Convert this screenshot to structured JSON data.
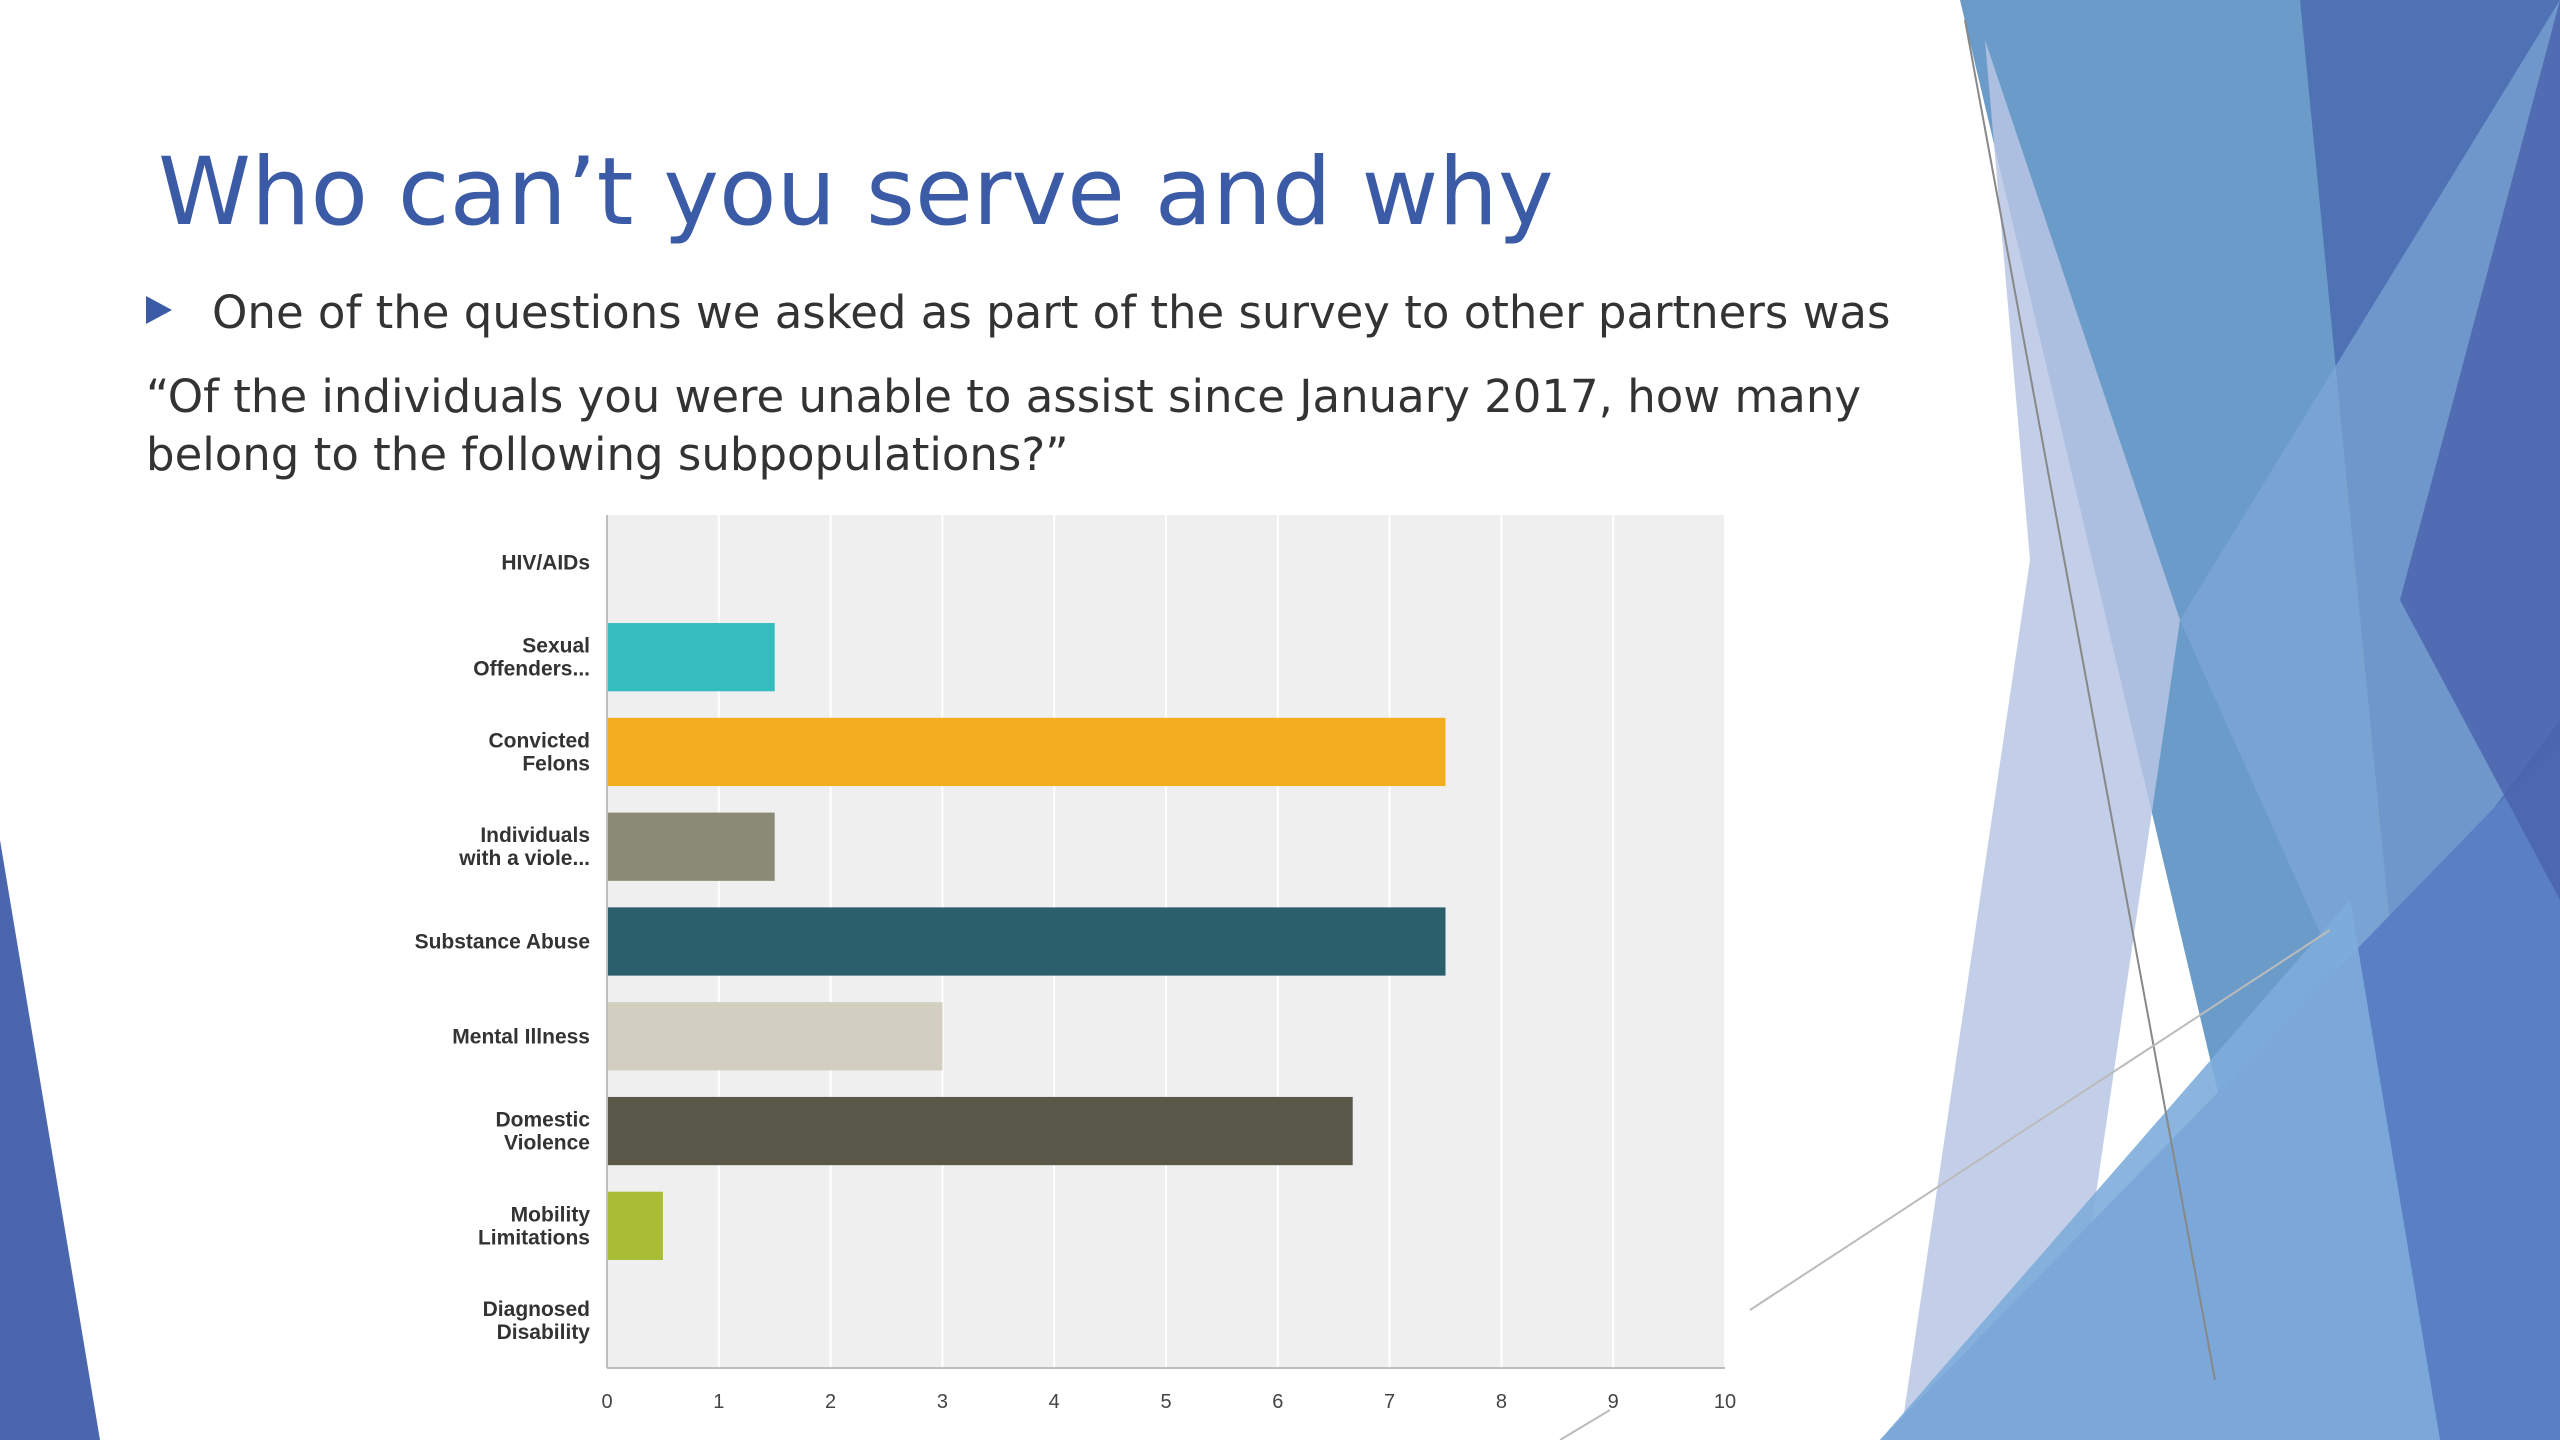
{
  "slide": {
    "title": "Who can’t you serve and why",
    "bullet": "One of the questions we asked as part of the survey to other partners was",
    "quote": "“Of the individuals you were unable to assist since January 2017, how many belong to the following subpopulations?”"
  },
  "colors": {
    "title": "#3b5ba6",
    "text": "#333333",
    "plot_background": "#efefef",
    "gridline": "#ffffff",
    "axis": "#bdbdbd"
  },
  "chart_data": {
    "type": "bar",
    "orientation": "horizontal",
    "categories": [
      [
        "HIV/AIDs"
      ],
      [
        "Sexual",
        "Offenders..."
      ],
      [
        "Convicted",
        "Felons"
      ],
      [
        "Individuals",
        "with a viole..."
      ],
      [
        "Substance Abuse"
      ],
      [
        "Mental Illness"
      ],
      [
        "Domestic",
        "Violence"
      ],
      [
        "Mobility",
        "Limitations"
      ],
      [
        "Diagnosed",
        "Disability"
      ]
    ],
    "values": [
      0,
      1.5,
      7.5,
      1.5,
      7.5,
      3,
      6.67,
      0.5,
      0
    ],
    "bar_colors": [
      "#1f77b4",
      "#35bcbf",
      "#f2ae1e",
      "#8a8a77",
      "#2c5f6c",
      "#d2cfc1",
      "#5a5849",
      "#a8bc36",
      "#cccccc"
    ],
    "xlim": [
      0,
      10
    ],
    "xticks": [
      "0",
      "1",
      "2",
      "3",
      "4",
      "5",
      "6",
      "7",
      "8",
      "9",
      "10"
    ],
    "grid": true,
    "legend": "none"
  }
}
